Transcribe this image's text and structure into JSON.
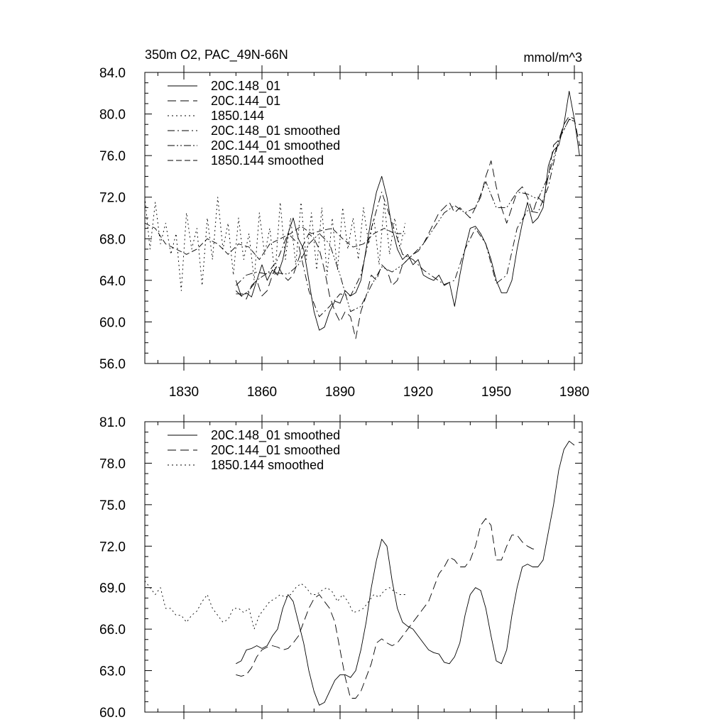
{
  "chart_data": [
    {
      "type": "line",
      "title": "350m O2, PAC_49N-66N",
      "units_label": "mmol/m^3",
      "xlabel": "",
      "ylabel": "",
      "xlim": [
        1815,
        1983
      ],
      "ylim": [
        56,
        84
      ],
      "xticks": [
        1830,
        1860,
        1890,
        1920,
        1950,
        1980
      ],
      "xtick_labels": [
        "1830",
        "1860",
        "1890",
        "1920",
        "1950",
        "1980"
      ],
      "yticks": [
        56,
        60,
        64,
        68,
        72,
        76,
        80,
        84
      ],
      "ytick_labels": [
        "56.0",
        "60.0",
        "64.0",
        "68.0",
        "72.0",
        "76.0",
        "80.0",
        "84.0"
      ],
      "grid": false,
      "legend_position": "top-left",
      "series": [
        {
          "name": "20C.148_01",
          "style": "solid",
          "x": [
            1850,
            1852,
            1854,
            1856,
            1858,
            1860,
            1862,
            1864,
            1866,
            1868,
            1870,
            1872,
            1874,
            1876,
            1878,
            1880,
            1882,
            1884,
            1886,
            1888,
            1890,
            1892,
            1894,
            1896,
            1898,
            1900,
            1902,
            1904,
            1906,
            1908,
            1910,
            1912,
            1914,
            1916,
            1918,
            1920,
            1922,
            1924,
            1926,
            1928,
            1930,
            1932,
            1934,
            1936,
            1938,
            1940,
            1942,
            1944,
            1946,
            1948,
            1950,
            1952,
            1954,
            1956,
            1958,
            1960,
            1962,
            1964,
            1966,
            1968,
            1970,
            1972,
            1974,
            1976,
            1978,
            1980,
            1982
          ],
          "values": [
            64.0,
            62.5,
            62.8,
            62.4,
            64.0,
            65.5,
            64.0,
            65.0,
            64.5,
            66.0,
            68.5,
            70.0,
            68.0,
            67.0,
            64.0,
            61.0,
            59.2,
            59.5,
            61.0,
            62.0,
            61.8,
            63.0,
            62.5,
            62.8,
            64.0,
            67.0,
            70.0,
            72.5,
            74.0,
            72.0,
            69.0,
            67.0,
            66.0,
            66.5,
            65.5,
            66.0,
            64.5,
            64.2,
            64.0,
            64.5,
            63.5,
            63.8,
            61.5,
            64.5,
            67.0,
            69.0,
            69.2,
            68.5,
            67.5,
            66.0,
            64.0,
            62.8,
            62.8,
            64.0,
            67.0,
            69.5,
            71.5,
            69.5,
            70.0,
            71.0,
            75.0,
            76.5,
            77.0,
            79.0,
            82.2,
            79.5,
            76.0
          ]
        },
        {
          "name": "20C.144_01",
          "style": "dashed",
          "x": [
            1850,
            1852,
            1854,
            1856,
            1858,
            1860,
            1862,
            1864,
            1866,
            1868,
            1870,
            1872,
            1874,
            1876,
            1878,
            1880,
            1882,
            1884,
            1886,
            1888,
            1890,
            1892,
            1894,
            1896,
            1898,
            1900,
            1902,
            1904,
            1906,
            1908,
            1910,
            1912,
            1914,
            1916,
            1918,
            1920,
            1922,
            1924,
            1926,
            1928,
            1930,
            1932,
            1934,
            1936,
            1938,
            1940,
            1942,
            1944,
            1946,
            1948,
            1950,
            1952,
            1954,
            1956,
            1958,
            1960,
            1962,
            1964,
            1966,
            1968,
            1970,
            1972,
            1974,
            1976,
            1978,
            1980,
            1982
          ],
          "values": [
            63.0,
            62.5,
            62.2,
            63.5,
            64.0,
            62.5,
            63.0,
            64.5,
            65.5,
            64.5,
            64.0,
            64.5,
            66.0,
            67.5,
            68.5,
            68.0,
            67.0,
            65.0,
            62.5,
            61.0,
            60.0,
            61.0,
            60.5,
            58.4,
            61.0,
            62.5,
            64.5,
            64.0,
            65.5,
            65.0,
            63.5,
            64.0,
            65.5,
            66.0,
            66.5,
            66.8,
            67.5,
            68.5,
            69.5,
            70.5,
            71.0,
            71.5,
            70.5,
            71.0,
            70.5,
            70.0,
            71.0,
            72.0,
            74.0,
            75.5,
            73.0,
            71.0,
            69.5,
            71.0,
            72.5,
            73.0,
            72.0,
            70.5,
            72.0,
            71.5,
            74.0,
            77.0,
            77.5,
            79.0,
            79.8,
            79.5,
            77.0
          ]
        },
        {
          "name": "1850.144",
          "style": "dotted",
          "x": [
            1815,
            1817,
            1819,
            1821,
            1823,
            1825,
            1827,
            1829,
            1831,
            1833,
            1835,
            1837,
            1839,
            1841,
            1843,
            1845,
            1847,
            1849,
            1851,
            1853,
            1855,
            1857,
            1859,
            1861,
            1863,
            1865,
            1867,
            1869,
            1871,
            1873,
            1875,
            1877,
            1879,
            1881,
            1883,
            1885,
            1887,
            1889,
            1891,
            1893,
            1895,
            1897,
            1899,
            1901,
            1903,
            1905,
            1907,
            1909,
            1911,
            1913,
            1915
          ],
          "values": [
            72.0,
            67.0,
            71.5,
            67.5,
            69.5,
            66.5,
            68.5,
            63.0,
            70.5,
            67.0,
            69.0,
            63.5,
            70.0,
            66.0,
            72.0,
            67.0,
            69.5,
            64.5,
            70.0,
            66.0,
            68.5,
            64.0,
            70.5,
            66.5,
            69.0,
            64.5,
            71.5,
            66.0,
            70.0,
            65.5,
            71.5,
            66.0,
            70.5,
            65.0,
            71.0,
            64.5,
            70.0,
            65.0,
            71.0,
            67.0,
            70.0,
            66.0,
            71.0,
            67.5,
            70.0,
            65.5,
            71.5,
            66.5,
            70.0,
            67.0,
            69.5
          ]
        },
        {
          "name": "20C.148_01 smoothed",
          "style": "dashdot",
          "x": [
            1850,
            1854,
            1858,
            1862,
            1866,
            1870,
            1874,
            1878,
            1882,
            1886,
            1890,
            1894,
            1898,
            1902,
            1906,
            1910,
            1914,
            1918,
            1922,
            1926,
            1930,
            1934,
            1938,
            1942,
            1946,
            1950,
            1954,
            1958,
            1962,
            1966,
            1970,
            1974,
            1978,
            1980
          ],
          "values": [
            63.5,
            64.5,
            64.8,
            64.6,
            66.0,
            68.5,
            67.5,
            63.0,
            60.5,
            61.5,
            62.7,
            62.5,
            64.5,
            69.0,
            72.5,
            69.5,
            66.5,
            66.0,
            65.0,
            64.3,
            63.6,
            64.0,
            67.0,
            69.0,
            67.5,
            63.7,
            64.5,
            69.0,
            70.7,
            70.5,
            73.0,
            77.5,
            79.5,
            79.3
          ]
        },
        {
          "name": "20C.144_01 smoothed",
          "style": "dashdotdot",
          "x": [
            1850,
            1854,
            1858,
            1862,
            1866,
            1870,
            1874,
            1878,
            1882,
            1886,
            1890,
            1894,
            1898,
            1902,
            1906,
            1910,
            1914,
            1918,
            1922,
            1926,
            1930,
            1934,
            1938,
            1942,
            1946,
            1950,
            1954,
            1958,
            1962,
            1966,
            1970,
            1974,
            1978,
            1980
          ],
          "values": [
            62.7,
            62.7,
            64.0,
            64.7,
            64.7,
            64.6,
            65.5,
            67.5,
            68.5,
            67.5,
            64.5,
            61.0,
            61.5,
            63.5,
            65.3,
            64.8,
            65.5,
            66.5,
            67.5,
            69.0,
            70.5,
            71.2,
            70.5,
            71.0,
            73.5,
            71.0,
            71.0,
            72.5,
            72.3,
            71.8,
            74.0,
            77.5,
            79.5,
            79.3
          ]
        },
        {
          "name": "1850.144 smoothed",
          "style": "longdash",
          "x": [
            1815,
            1819,
            1823,
            1827,
            1831,
            1835,
            1839,
            1843,
            1847,
            1851,
            1855,
            1859,
            1863,
            1867,
            1871,
            1875,
            1879,
            1883,
            1887,
            1891,
            1895,
            1899,
            1903,
            1907,
            1911,
            1915
          ],
          "values": [
            69.5,
            69.0,
            67.5,
            67.0,
            66.5,
            67.0,
            68.0,
            67.5,
            66.5,
            67.5,
            67.2,
            66.0,
            67.5,
            68.0,
            68.5,
            69.2,
            68.5,
            68.8,
            69.0,
            68.0,
            67.2,
            67.5,
            68.5,
            69.0,
            68.5,
            68.5
          ]
        }
      ]
    },
    {
      "type": "line",
      "title": "",
      "xlabel": "",
      "ylabel": "",
      "xlim": [
        1815,
        1983
      ],
      "ylim": [
        60,
        81
      ],
      "xticks": [
        1830,
        1860,
        1890,
        1920,
        1950,
        1980
      ],
      "yticks": [
        60,
        63,
        66,
        69,
        72,
        75,
        78,
        81
      ],
      "ytick_labels": [
        "60.0",
        "63.0",
        "66.0",
        "69.0",
        "72.0",
        "75.0",
        "78.0",
        "81.0"
      ],
      "grid": false,
      "legend_position": "top-left",
      "series": [
        {
          "name": "20C.148_01 smoothed",
          "style": "solid",
          "x": [
            1850,
            1852,
            1854,
            1856,
            1858,
            1860,
            1862,
            1864,
            1866,
            1868,
            1870,
            1872,
            1874,
            1876,
            1878,
            1880,
            1882,
            1884,
            1886,
            1888,
            1890,
            1892,
            1894,
            1896,
            1898,
            1900,
            1902,
            1904,
            1906,
            1908,
            1910,
            1912,
            1914,
            1916,
            1918,
            1920,
            1922,
            1924,
            1926,
            1928,
            1930,
            1932,
            1934,
            1936,
            1938,
            1940,
            1942,
            1944,
            1946,
            1948,
            1950,
            1952,
            1954,
            1956,
            1958,
            1960,
            1962,
            1964,
            1966,
            1968,
            1970,
            1972,
            1974,
            1976,
            1978,
            1980
          ],
          "values": [
            63.5,
            63.7,
            64.5,
            64.6,
            64.8,
            64.6,
            64.8,
            65.5,
            66.0,
            67.5,
            68.5,
            68.0,
            66.5,
            65.0,
            63.0,
            61.5,
            60.5,
            60.7,
            61.5,
            62.3,
            62.7,
            62.7,
            62.5,
            63.0,
            64.5,
            66.5,
            69.0,
            71.0,
            72.5,
            72.0,
            69.5,
            67.5,
            66.5,
            66.2,
            66.0,
            65.5,
            65.0,
            64.5,
            64.3,
            64.2,
            63.6,
            63.5,
            64.0,
            65.0,
            67.0,
            68.5,
            69.0,
            68.8,
            67.5,
            65.5,
            63.7,
            63.5,
            64.5,
            67.0,
            69.0,
            70.5,
            70.7,
            70.5,
            70.5,
            71.0,
            73.0,
            75.0,
            77.5,
            79.0,
            79.6,
            79.3
          ]
        },
        {
          "name": "20C.144_01 smoothed",
          "style": "dashed",
          "x": [
            1850,
            1852,
            1854,
            1856,
            1858,
            1860,
            1862,
            1864,
            1866,
            1868,
            1870,
            1872,
            1874,
            1876,
            1878,
            1880,
            1882,
            1884,
            1886,
            1888,
            1890,
            1892,
            1894,
            1896,
            1898,
            1900,
            1902,
            1904,
            1906,
            1908,
            1910,
            1912,
            1914,
            1916,
            1918,
            1920,
            1922,
            1924,
            1926,
            1928,
            1930,
            1932,
            1934,
            1936,
            1938,
            1940,
            1942,
            1944,
            1946,
            1948,
            1950,
            1952,
            1954,
            1956,
            1958,
            1960,
            1962,
            1964,
            1966
          ],
          "values": [
            62.7,
            62.6,
            62.7,
            63.2,
            64.0,
            64.5,
            64.7,
            64.8,
            64.7,
            64.5,
            64.6,
            65.0,
            65.5,
            66.5,
            67.5,
            68.2,
            68.5,
            68.0,
            67.5,
            66.5,
            64.5,
            62.5,
            61.0,
            61.0,
            61.5,
            62.5,
            63.5,
            65.0,
            65.3,
            65.0,
            64.8,
            65.0,
            65.5,
            66.0,
            66.5,
            67.0,
            67.5,
            68.0,
            69.0,
            70.0,
            70.5,
            71.2,
            71.0,
            70.5,
            70.5,
            71.0,
            72.0,
            73.5,
            74.0,
            73.5,
            71.0,
            71.0,
            72.0,
            72.8,
            72.8,
            72.3,
            72.0,
            71.8,
            71.8
          ]
        },
        {
          "name": "1850.144 smoothed",
          "style": "dotted",
          "x": [
            1815,
            1817,
            1819,
            1821,
            1823,
            1825,
            1827,
            1829,
            1831,
            1833,
            1835,
            1837,
            1839,
            1841,
            1843,
            1845,
            1847,
            1849,
            1851,
            1853,
            1855,
            1857,
            1859,
            1861,
            1863,
            1865,
            1867,
            1869,
            1871,
            1873,
            1875,
            1877,
            1879,
            1881,
            1883,
            1885,
            1887,
            1889,
            1891,
            1893,
            1895,
            1897,
            1899,
            1901,
            1903,
            1905,
            1907,
            1909,
            1911,
            1913,
            1915
          ],
          "values": [
            69.5,
            69.0,
            68.5,
            69.0,
            67.5,
            67.5,
            67.0,
            67.0,
            66.5,
            67.0,
            67.3,
            68.0,
            68.5,
            67.5,
            67.0,
            66.5,
            66.7,
            67.5,
            67.5,
            67.2,
            67.5,
            66.0,
            67.0,
            67.5,
            68.0,
            68.2,
            68.5,
            68.3,
            68.5,
            69.0,
            69.3,
            69.0,
            68.5,
            68.5,
            68.8,
            69.0,
            68.7,
            68.0,
            68.5,
            68.0,
            67.2,
            67.3,
            67.5,
            68.0,
            68.5,
            68.3,
            68.8,
            69.0,
            68.7,
            68.5,
            68.5
          ]
        }
      ]
    }
  ]
}
